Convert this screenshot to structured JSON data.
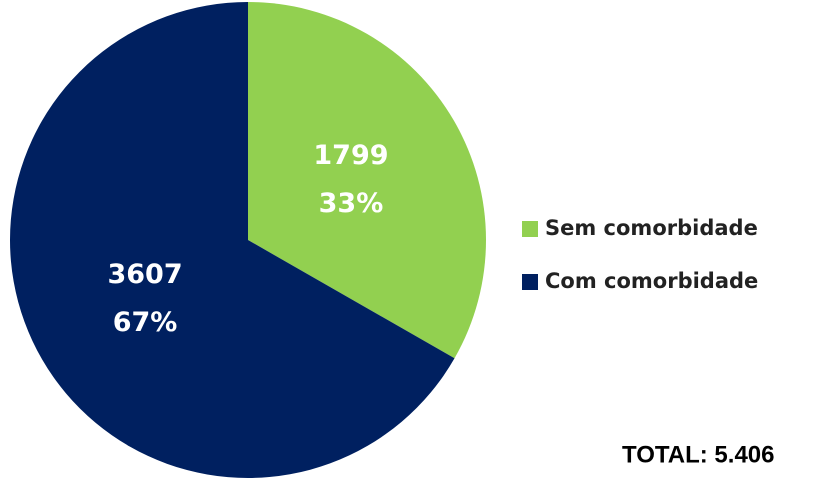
{
  "chart_data": {
    "type": "pie",
    "categories": [
      "Sem comorbidade",
      "Com comorbidade"
    ],
    "values": [
      1799,
      3607
    ],
    "percent_labels": [
      "33%",
      "67%"
    ],
    "colors": [
      "#92d050",
      "#002060"
    ],
    "annotation": "TOTAL: 5.406"
  }
}
